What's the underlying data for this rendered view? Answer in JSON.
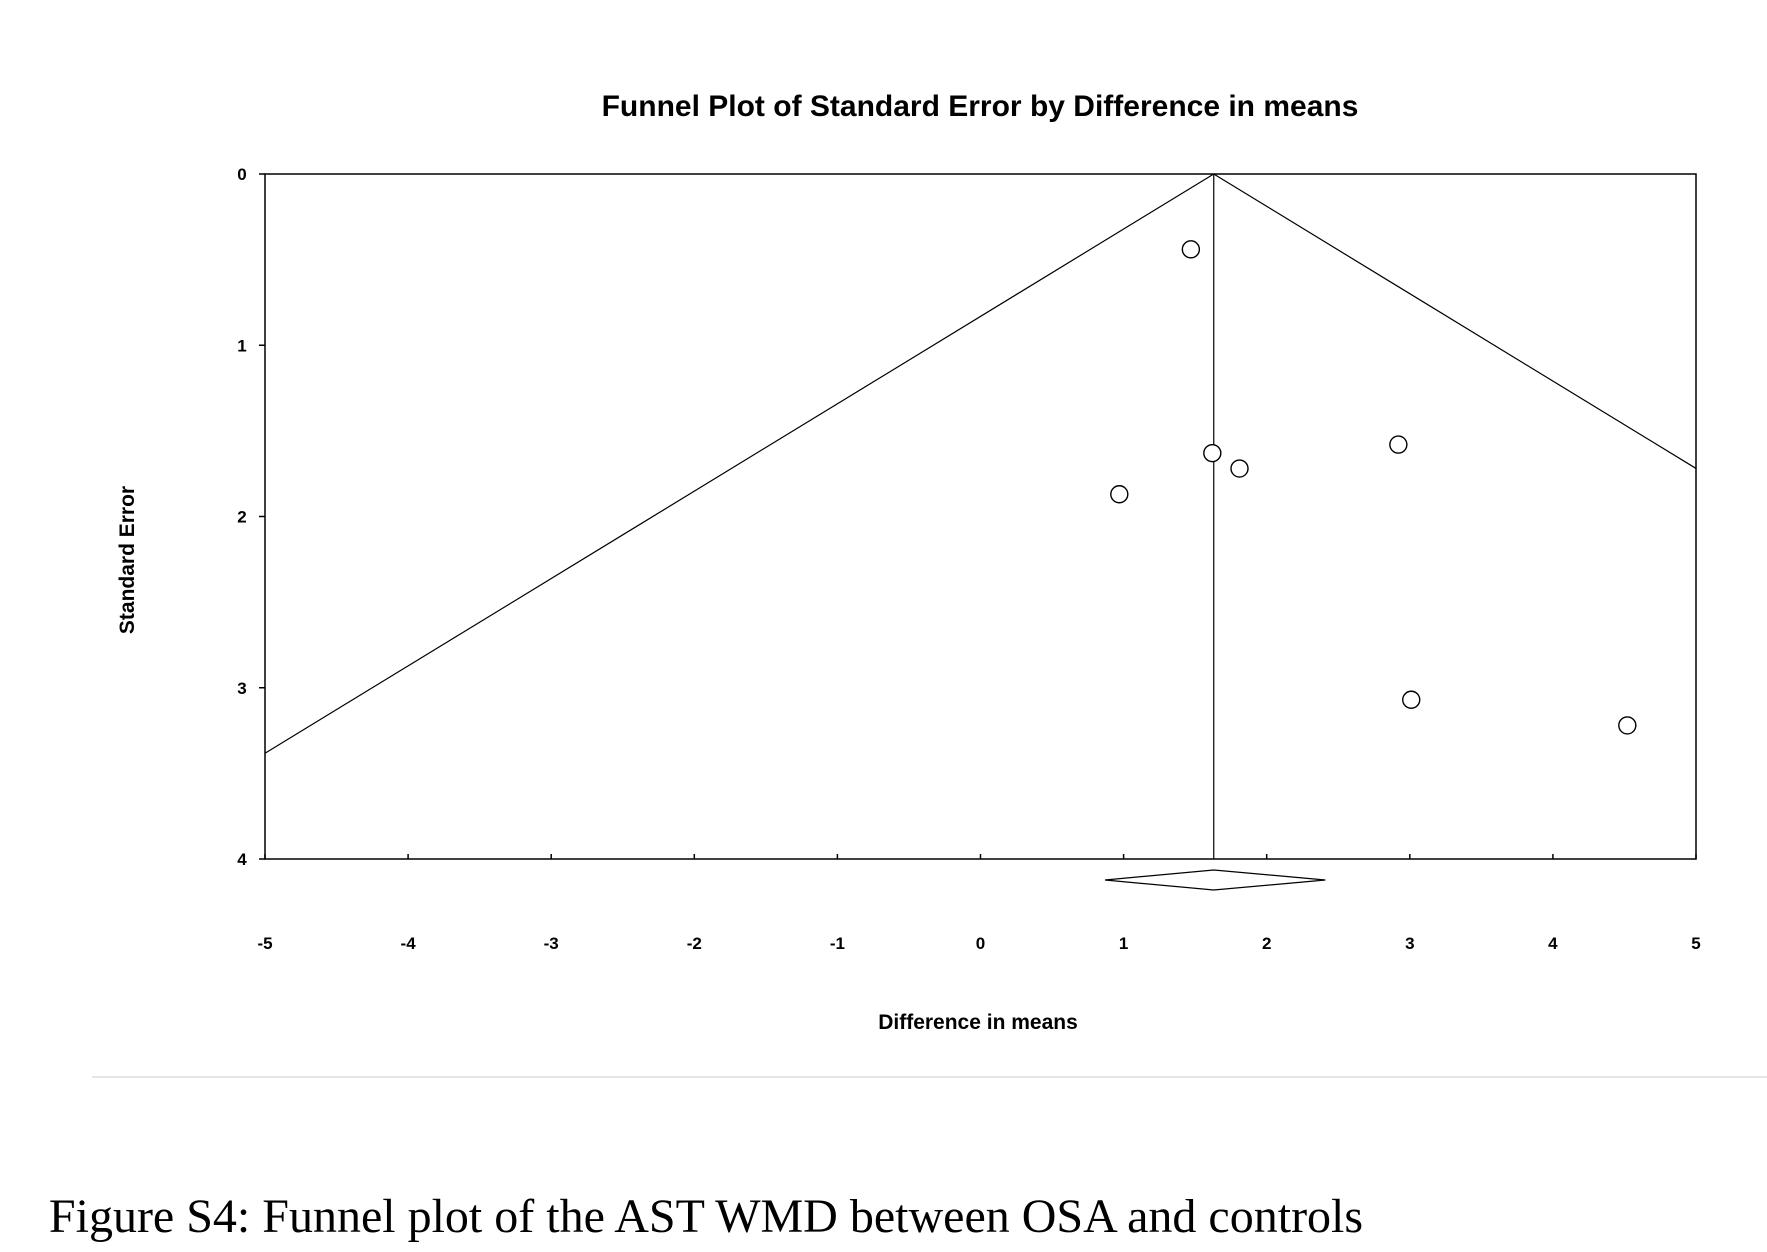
{
  "chart_data": {
    "type": "scatter",
    "title": "Funnel Plot of Standard Error by Difference in means",
    "xlabel": "Difference in means",
    "ylabel": "Standard Error",
    "xlim": [
      -5,
      5
    ],
    "ylim": [
      0,
      4
    ],
    "y_inverted": true,
    "x_ticks": [
      "-5",
      "-4",
      "-3",
      "-2",
      "-1",
      "0",
      "1",
      "2",
      "3",
      "4",
      "5"
    ],
    "y_ticks": [
      "0",
      "1",
      "2",
      "3",
      "4"
    ],
    "pooled_estimate": 1.63,
    "pooled_ci": [
      0.87,
      2.41
    ],
    "funnel_slope": 1.96,
    "points": [
      {
        "x": 1.47,
        "y": 0.44
      },
      {
        "x": 1.62,
        "y": 1.63
      },
      {
        "x": 1.81,
        "y": 1.72
      },
      {
        "x": 0.97,
        "y": 1.87
      },
      {
        "x": 2.92,
        "y": 1.58
      },
      {
        "x": 3.01,
        "y": 3.07
      },
      {
        "x": 4.52,
        "y": 3.22
      }
    ],
    "grid": false,
    "legend": "none",
    "colors": {
      "line": "#000000",
      "marker_fill": "#ffffff"
    }
  },
  "caption": "Figure S4: Funnel plot of the AST WMD between OSA and controls"
}
